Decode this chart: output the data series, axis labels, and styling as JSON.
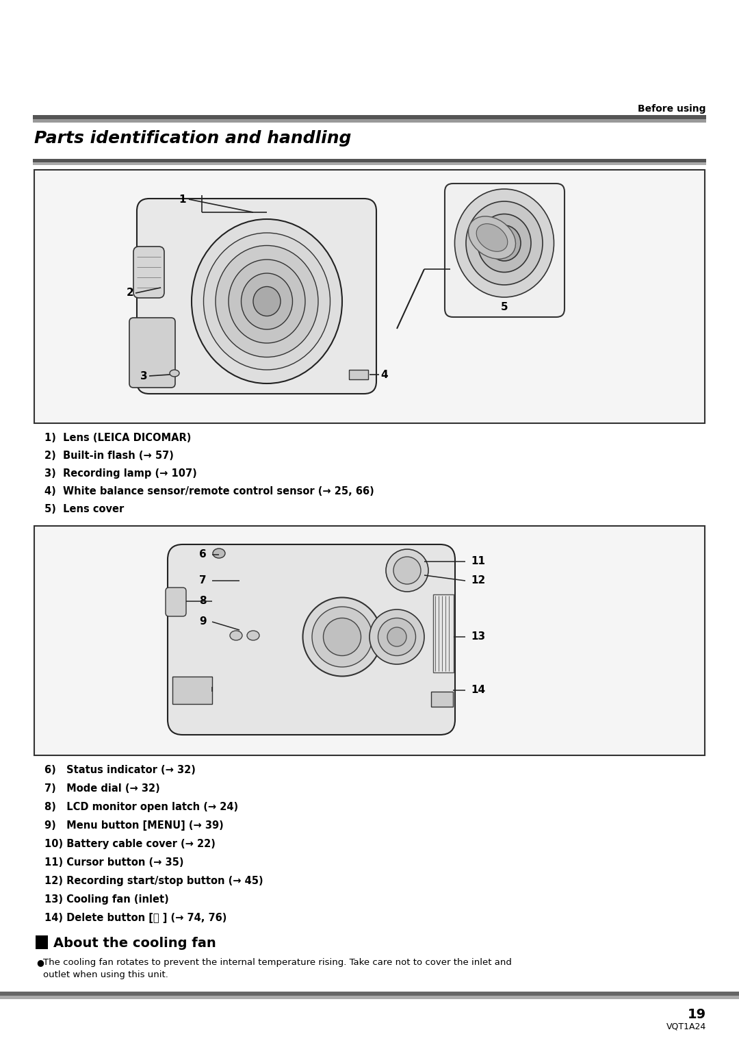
{
  "bg_color": "#ffffff",
  "page_width": 10.8,
  "page_height": 15.26,
  "dpi": 100,
  "before_using_text": "Before using",
  "title_text": "Parts identification and handling",
  "box1_items": [
    "1)  Lens (LEICA DICOMAR)",
    "2)  Built-in flash (→ 57)",
    "3)  Recording lamp (→ 107)",
    "4)  White balance sensor/remote control sensor (→ 25, 66)",
    "5)  Lens cover"
  ],
  "box2_items": [
    "6)   Status indicator (→ 32)",
    "7)   Mode dial (→ 32)",
    "8)   LCD monitor open latch (→ 24)",
    "9)   Menu button [MENU] (→ 39)",
    "10) Battery cable cover (→ 22)",
    "11) Cursor button (→ 35)",
    "12) Recording start/stop button (→ 45)",
    "13) Cooling fan (inlet)",
    "14) Delete button [㗞 ] (→ 74, 76)"
  ],
  "cooling_fan_title": "About the cooling fan",
  "cooling_fan_text": "The cooling fan rotates to prevent the internal temperature rising. Take care not to cover the inlet and\noutlet when using this unit.",
  "page_number": "19",
  "page_code": "VQT1A24"
}
